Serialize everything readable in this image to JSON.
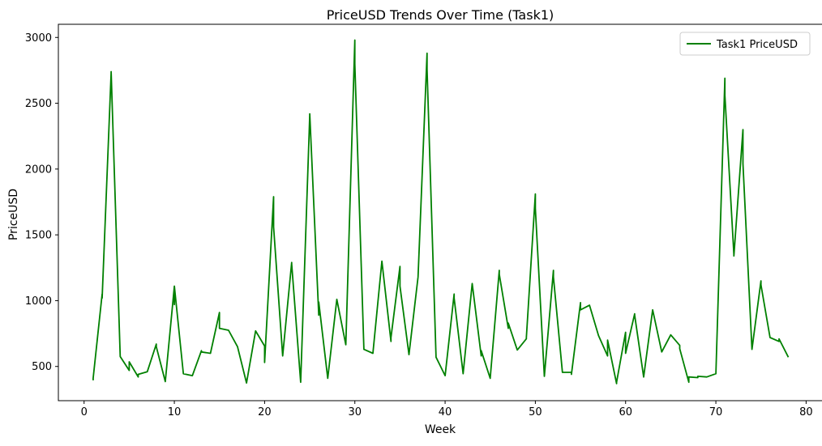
{
  "chart_data": {
    "type": "line",
    "title": "PriceUSD Trends Over Time (Task1)",
    "xlabel": "Week",
    "ylabel": "PriceUSD",
    "xlim": [
      -2.85,
      81.85
    ],
    "ylim": [
      240,
      3100
    ],
    "xticks": [
      0,
      10,
      20,
      30,
      40,
      50,
      60,
      70,
      80
    ],
    "yticks": [
      500,
      1000,
      1500,
      2000,
      2500,
      3000
    ],
    "grid": false,
    "legend_position": "top-right",
    "line_color": "#008000",
    "series": [
      {
        "name": "Task1 PriceUSD",
        "color": "#008000",
        "x": [
          1,
          1,
          2,
          2,
          3,
          3,
          3,
          4,
          5,
          5,
          6,
          6,
          7,
          8,
          8,
          9,
          10,
          10,
          10,
          11,
          12,
          13,
          13,
          14,
          15,
          15,
          15,
          16,
          17,
          18,
          19,
          20,
          20,
          21,
          21,
          21,
          22,
          23,
          23,
          24,
          25,
          25,
          26,
          26,
          27,
          28,
          29,
          30,
          30,
          31,
          32,
          33,
          34,
          34,
          35,
          35,
          36,
          37,
          38,
          38,
          39,
          40,
          41,
          41,
          42,
          43,
          44,
          44,
          45,
          46,
          46,
          47,
          47,
          48,
          49,
          49,
          50,
          50,
          51,
          52,
          52,
          53,
          54,
          54,
          55,
          55,
          56,
          57,
          58,
          58,
          59,
          59,
          60,
          60,
          61,
          61,
          62,
          63,
          64,
          65,
          66,
          66,
          67,
          67,
          68,
          68,
          69,
          70,
          71,
          71,
          72,
          72,
          73,
          73,
          74,
          75,
          75,
          76,
          77,
          77,
          78
        ],
        "y": [
          400,
          410,
          1050,
          1020,
          2730,
          2650,
          2740,
          575,
          470,
          535,
          420,
          440,
          460,
          670,
          650,
          385,
          1110,
          970,
          1110,
          445,
          430,
          620,
          610,
          600,
          910,
          880,
          790,
          775,
          650,
          375,
          770,
          655,
          530,
          1790,
          1770,
          1560,
          580,
          1290,
          1280,
          380,
          2410,
          2420,
          890,
          990,
          410,
          1010,
          665,
          2980,
          2800,
          630,
          600,
          1300,
          690,
          720,
          1260,
          1110,
          590,
          1180,
          2880,
          2760,
          570,
          430,
          1050,
          1020,
          445,
          1130,
          580,
          620,
          410,
          1230,
          1200,
          790,
          830,
          625,
          710,
          720,
          1810,
          1700,
          425,
          1230,
          1180,
          455,
          455,
          440,
          985,
          930,
          965,
          735,
          580,
          700,
          370,
          380,
          760,
          600,
          900,
          890,
          420,
          930,
          610,
          740,
          660,
          635,
          380,
          420,
          415,
          425,
          420,
          445,
          2690,
          2560,
          1350,
          1340,
          2300,
          2040,
          630,
          1150,
          1120,
          720,
          690,
          710,
          575
        ]
      }
    ]
  }
}
